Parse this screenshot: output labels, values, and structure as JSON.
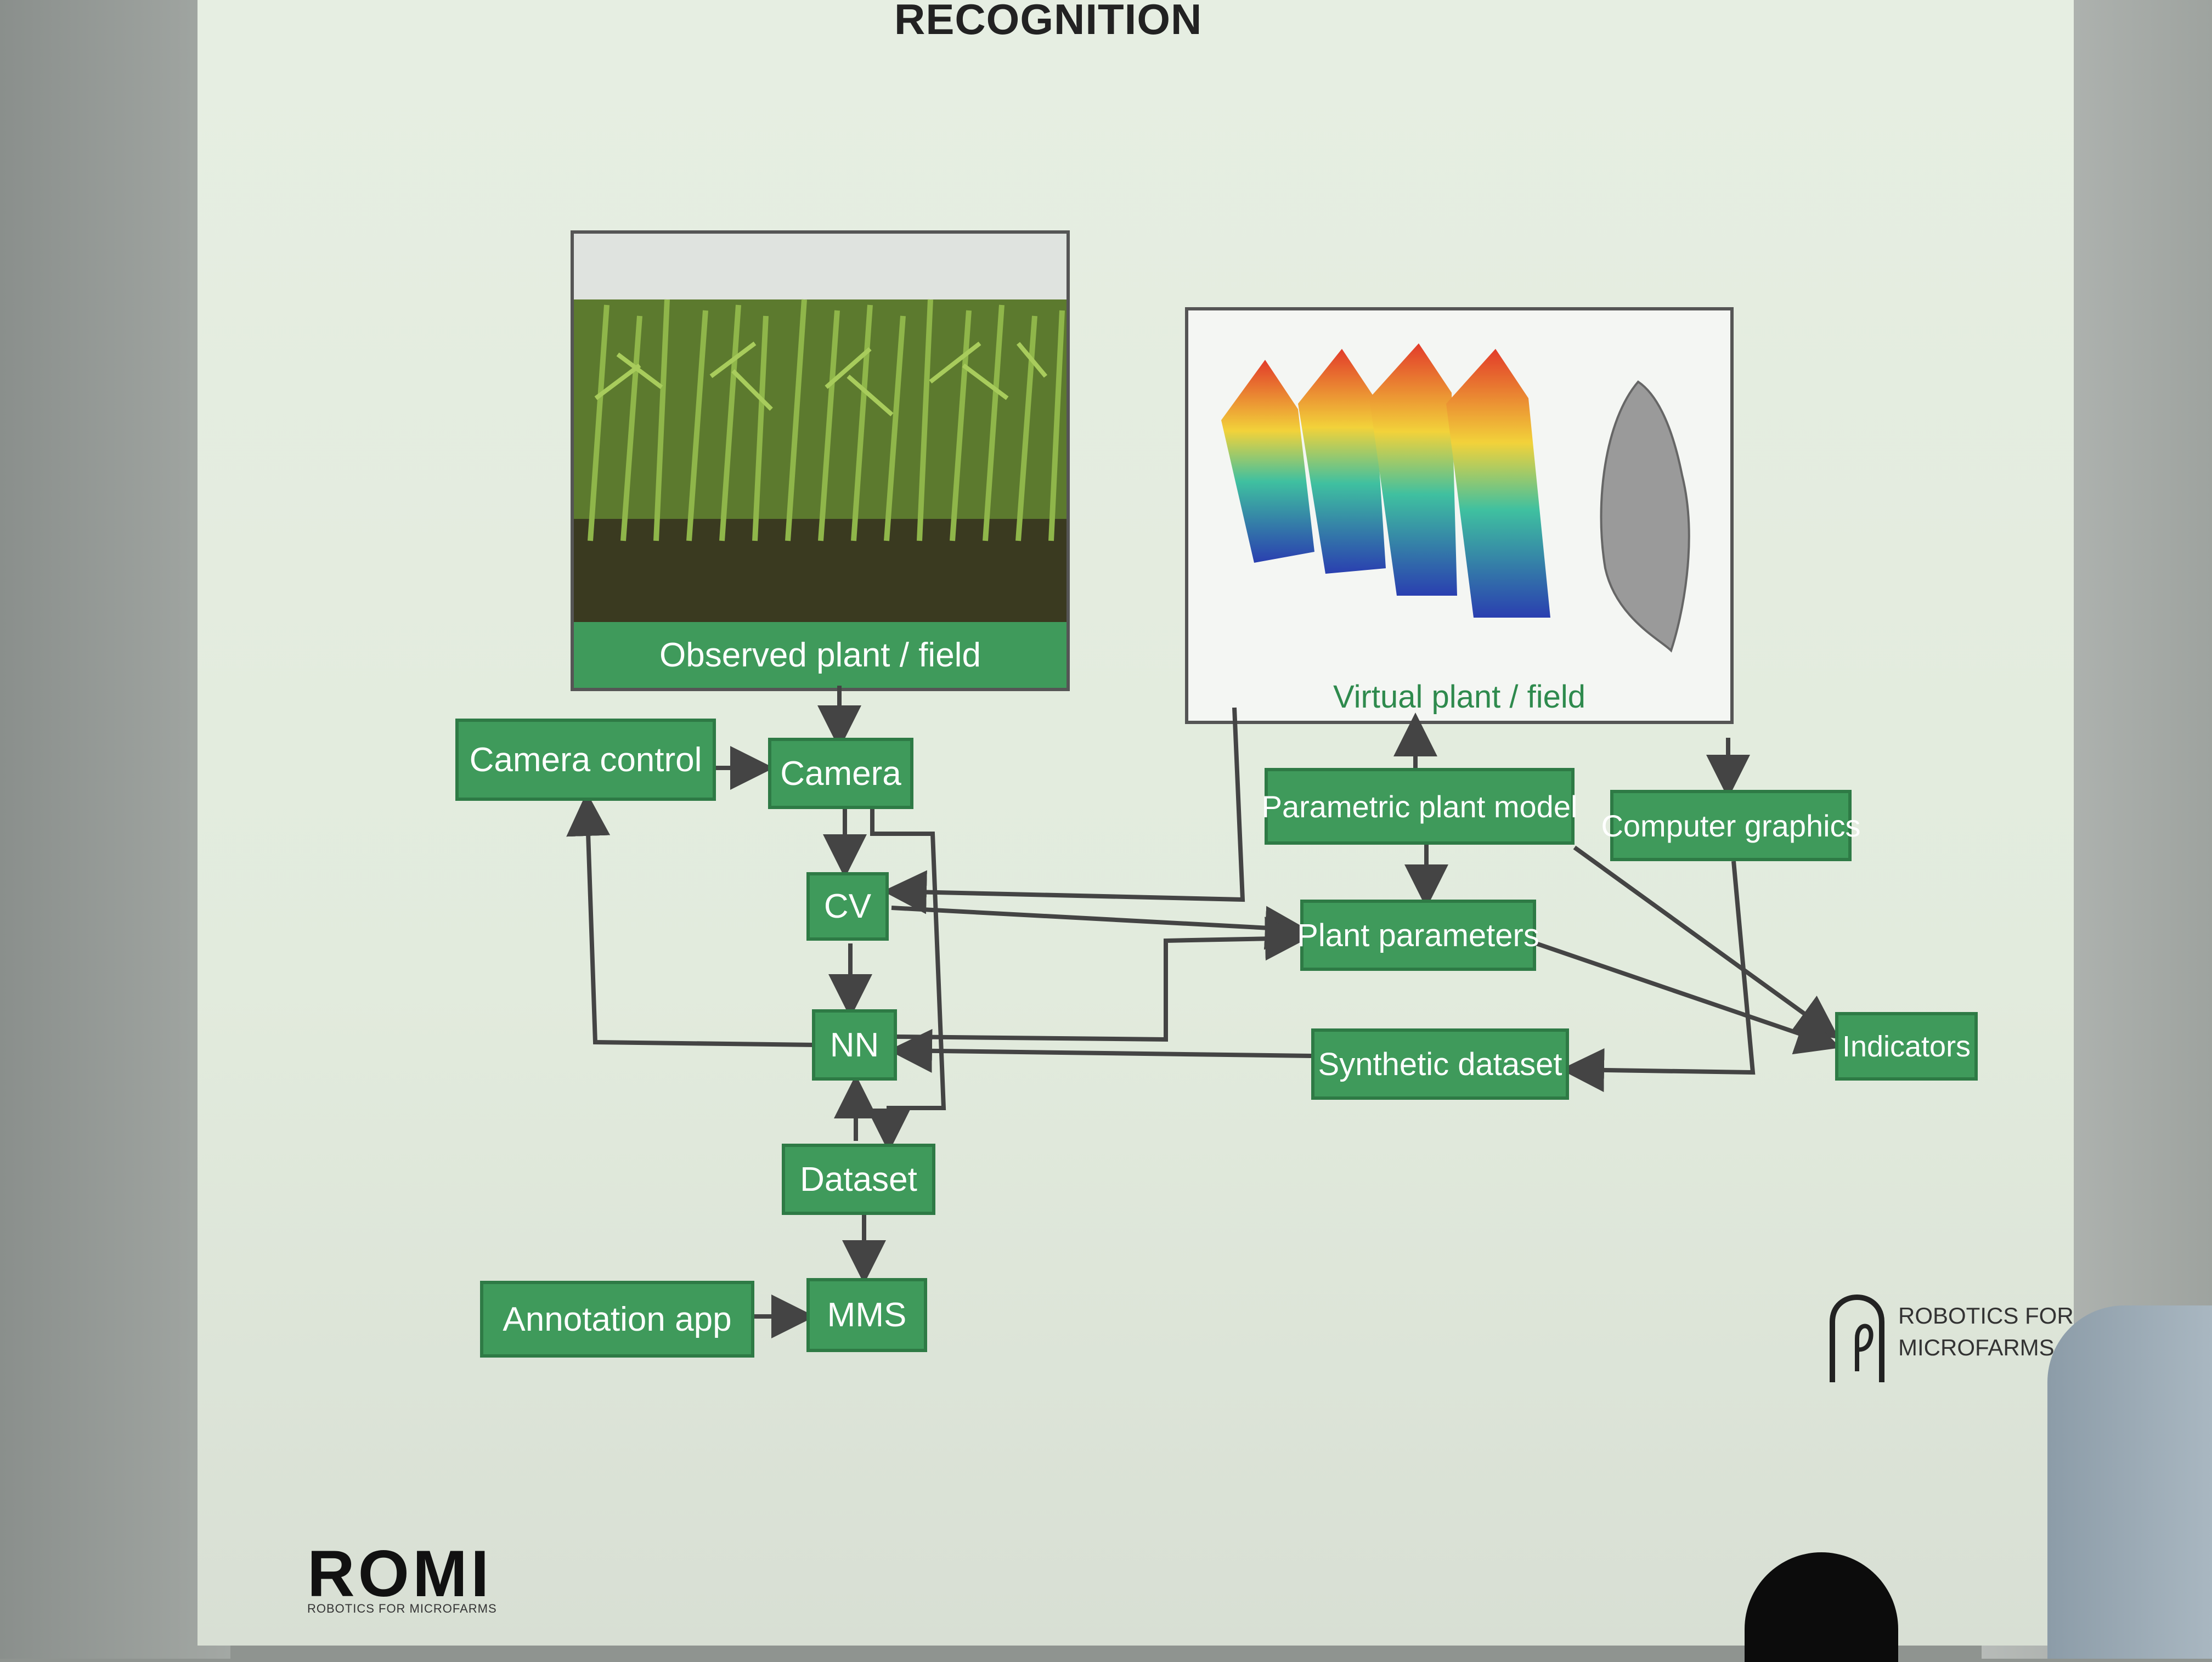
{
  "title": "RECOGNITION",
  "panels": {
    "observed": {
      "label": "Observed plant / field"
    },
    "virtual": {
      "label": "Virtual plant / field"
    }
  },
  "nodes": {
    "camera_control": "Camera control",
    "camera": "Camera",
    "cv": "CV",
    "nn": "NN",
    "dataset": "Dataset",
    "mms": "MMS",
    "annotation_app": "Annotation app",
    "parametric_plant_model": "Parametric plant model",
    "computer_graphics": "Computer graphics",
    "plant_parameters": "Plant parameters",
    "synthetic_dataset": "Synthetic dataset",
    "indicators": "Indicators"
  },
  "branding": {
    "right_logo_line1": "ROBOTICS FOR",
    "right_logo_line2": "MICROFARMS",
    "left_logo": "ROMI",
    "left_logo_sub": "ROBOTICS FOR MICROFARMS"
  },
  "colors": {
    "box_green": "#3f9a5b",
    "box_border": "#2e7a45",
    "line": "#444444"
  }
}
